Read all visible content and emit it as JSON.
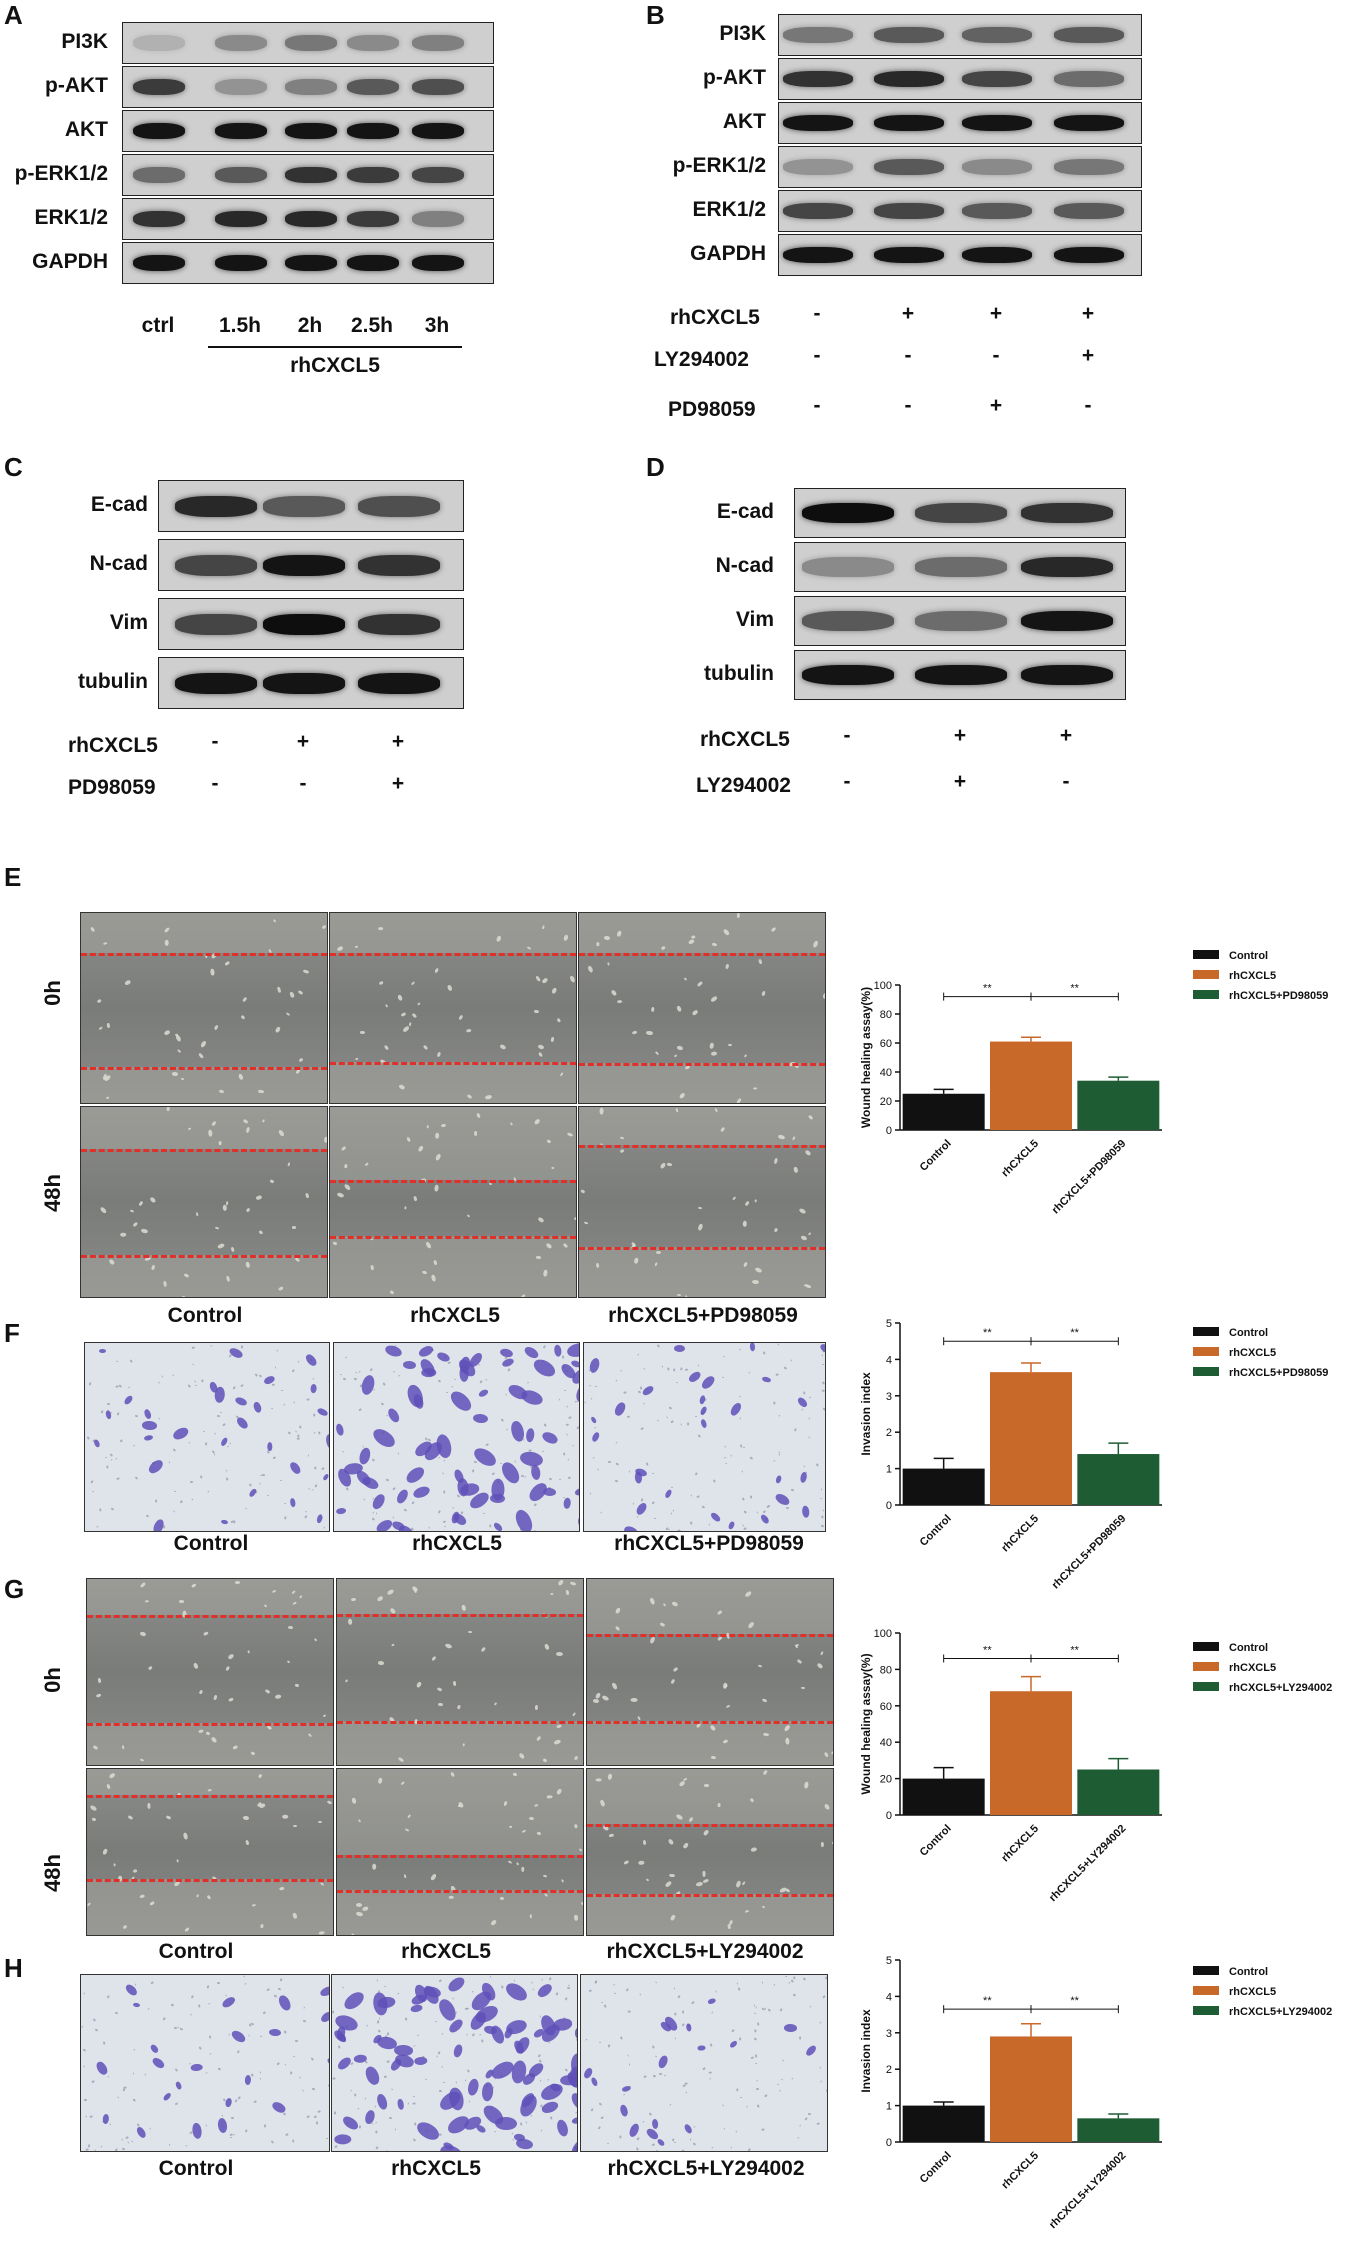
{
  "panels": {
    "A": {
      "label": "A",
      "proteins": [
        "PI3K",
        "p-AKT",
        "AKT",
        "p-ERK1/2",
        "ERK1/2",
        "GAPDH"
      ],
      "lanes": [
        "ctrl",
        "1.5h",
        "2h",
        "2.5h",
        "3h"
      ],
      "group_label": "rhCXCL5"
    },
    "B": {
      "label": "B",
      "proteins": [
        "PI3K",
        "p-AKT",
        "AKT",
        "p-ERK1/2",
        "ERK1/2",
        "GAPDH"
      ],
      "treatments": [
        {
          "name": "rhCXCL5",
          "signs": [
            "-",
            "+",
            "+",
            "+"
          ]
        },
        {
          "name": "LY294002",
          "signs": [
            "-",
            "-",
            "-",
            "+"
          ]
        },
        {
          "name": "PD98059",
          "signs": [
            "-",
            "-",
            "+",
            "-"
          ]
        }
      ]
    },
    "C": {
      "label": "C",
      "proteins": [
        "E-cad",
        "N-cad",
        "Vim",
        "tubulin"
      ],
      "treatments": [
        {
          "name": "rhCXCL5",
          "signs": [
            "-",
            "+",
            "+"
          ]
        },
        {
          "name": "PD98059",
          "signs": [
            "-",
            "-",
            "+"
          ]
        }
      ]
    },
    "D": {
      "label": "D",
      "proteins": [
        "E-cad",
        "N-cad",
        "Vim",
        "tubulin"
      ],
      "treatments": [
        {
          "name": "rhCXCL5",
          "signs": [
            "-",
            "+",
            "+"
          ]
        },
        {
          "name": "LY294002",
          "signs": [
            "-",
            "+",
            "-"
          ]
        }
      ]
    },
    "E": {
      "label": "E",
      "rows": [
        "0h",
        "48h"
      ],
      "captions": [
        "Control",
        "rhCXCL5",
        "rhCXCL5+PD98059"
      ]
    },
    "F": {
      "label": "F",
      "captions": [
        "Control",
        "rhCXCL5",
        "rhCXCL5+PD98059"
      ]
    },
    "G": {
      "label": "G",
      "rows": [
        "0h",
        "48h"
      ],
      "captions": [
        "Control",
        "rhCXCL5",
        "rhCXCL5+LY294002"
      ]
    },
    "H": {
      "label": "H",
      "captions": [
        "Control",
        "rhCXCL5",
        "rhCXCL5+LY294002"
      ]
    }
  },
  "colors": {
    "control": "#111111",
    "rhcxcl5": "#c8692a",
    "inhibitor": "#1e5c34",
    "dash": "#e0302a"
  },
  "chart_data": [
    {
      "panel": "E",
      "type": "bar",
      "categories": [
        "Control",
        "rhCXCL5",
        "rhCXCL5+PD98059"
      ],
      "values": [
        25,
        61,
        34
      ],
      "errors": [
        3,
        3,
        2.5
      ],
      "ylabel": "Wound healing assay(%)",
      "ylim": [
        0,
        100
      ],
      "yticks": [
        "0",
        "20",
        "40",
        "60",
        "80",
        "100"
      ],
      "ytick_values": [
        0,
        20,
        40,
        60,
        80,
        100
      ],
      "legend": [
        "Control",
        "rhCXCL5",
        "rhCXCL5+PD98059"
      ],
      "significance": [
        "**",
        "**"
      ]
    },
    {
      "panel": "F",
      "type": "bar",
      "categories": [
        "Control",
        "rhCXCL5",
        "rhCXCL5+PD98059"
      ],
      "values": [
        1.0,
        3.65,
        1.4
      ],
      "errors": [
        0.28,
        0.25,
        0.3
      ],
      "ylabel": "Invasion index",
      "ylim": [
        0,
        5
      ],
      "yticks": [
        "0",
        "1",
        "2",
        "3",
        "4",
        "5"
      ],
      "ytick_values": [
        0,
        1,
        2,
        3,
        4,
        5
      ],
      "legend": [
        "Control",
        "rhCXCL5",
        "rhCXCL5+PD98059"
      ],
      "significance": [
        "**",
        "**"
      ]
    },
    {
      "panel": "G",
      "type": "bar",
      "categories": [
        "Control",
        "rhCXCL5",
        "rhCXCL5+LY294002"
      ],
      "values": [
        20,
        68,
        25
      ],
      "errors": [
        6,
        8,
        6
      ],
      "ylabel": "Wound healing assay(%)",
      "ylim": [
        0,
        100
      ],
      "yticks": [
        "0",
        "20",
        "40",
        "60",
        "80",
        "100"
      ],
      "ytick_values": [
        0,
        20,
        40,
        60,
        80,
        100
      ],
      "legend": [
        "Control",
        "rhCXCL5",
        "rhCXCL5+LY294002"
      ],
      "significance": [
        "**",
        "**"
      ]
    },
    {
      "panel": "H",
      "type": "bar",
      "categories": [
        "Control",
        "rhCXCL5",
        "rhCXCL5+LY294002"
      ],
      "values": [
        1.0,
        2.9,
        0.65
      ],
      "errors": [
        0.1,
        0.35,
        0.12
      ],
      "ylabel": "Invasion index",
      "ylim": [
        0,
        5
      ],
      "yticks": [
        "0",
        "1",
        "2",
        "3",
        "4",
        "5"
      ],
      "ytick_values": [
        0,
        1,
        2,
        3,
        4,
        5
      ],
      "legend": [
        "Control",
        "rhCXCL5",
        "rhCXCL5+LY294002"
      ],
      "significance": [
        "**",
        "**"
      ]
    }
  ]
}
